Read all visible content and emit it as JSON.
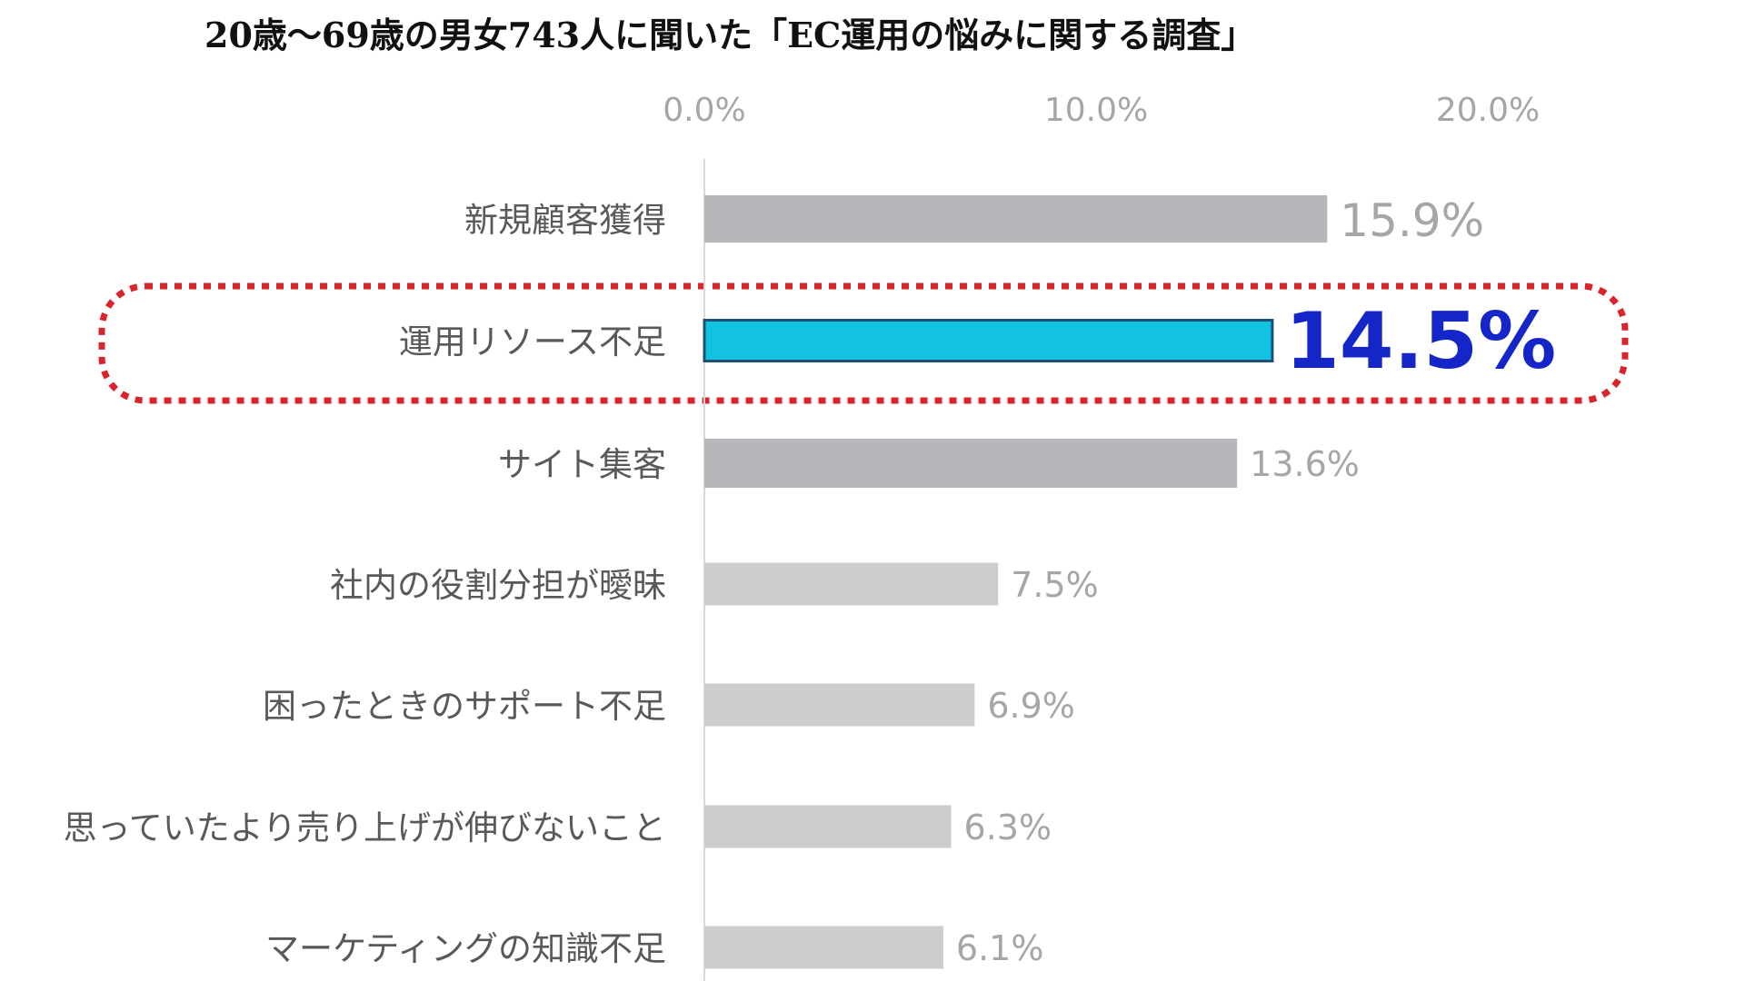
{
  "title": "20歳〜69歳の男女743人に聞いた「EC運用の悩みに関する調査」",
  "colors": {
    "highlight_bar": "#12C3E0",
    "highlight_bar_border": "#1F4E79",
    "highlight_label": "#1526C8",
    "top_bars": "#B6B7BA",
    "other_bars": "#CDCDCD",
    "highlight_frame": "#D9242B",
    "axis_text": "#A6A6A6",
    "category_text": "#595959"
  },
  "chart_data": {
    "type": "bar",
    "orientation": "horizontal",
    "categories": [
      "新規顧客獲得",
      "運用リソース不足",
      "サイト集客",
      "社内の役割分担が曖昧",
      "困ったときのサポート不足",
      "思っていたより売り上げが伸びないこと",
      "マーケティングの知識不足"
    ],
    "values": [
      15.9,
      14.5,
      13.6,
      7.5,
      6.9,
      6.3,
      6.1
    ],
    "value_labels": [
      "15.9%",
      "14.5%",
      "13.6%",
      "7.5%",
      "6.9%",
      "6.3%",
      "6.1%"
    ],
    "xlim": [
      0,
      20
    ],
    "xticks": [
      0,
      10,
      20
    ],
    "xtick_labels": [
      "0.0%",
      "10.0%",
      "20.0%"
    ],
    "axis_position": "top",
    "highlighted_index": 1,
    "grid": false
  }
}
